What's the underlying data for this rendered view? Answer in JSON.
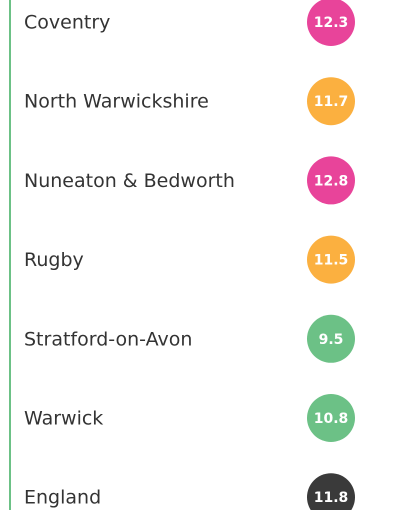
{
  "items": [
    {
      "name": "Coventry",
      "value": 12.3,
      "color": "#e8449a"
    },
    {
      "name": "North Warwickshire",
      "value": 11.7,
      "color": "#fbb040"
    },
    {
      "name": "Nuneaton & Bedworth",
      "value": 12.8,
      "color": "#e8449a"
    },
    {
      "name": "Rugby",
      "value": 11.5,
      "color": "#fbb040"
    },
    {
      "name": "Stratford-on-Avon",
      "value": 9.5,
      "color": "#6cc186"
    },
    {
      "name": "Warwick",
      "value": 10.8,
      "color": "#6cc186"
    },
    {
      "name": "England",
      "value": 11.8,
      "color": "#3a3a3a"
    }
  ]
}
